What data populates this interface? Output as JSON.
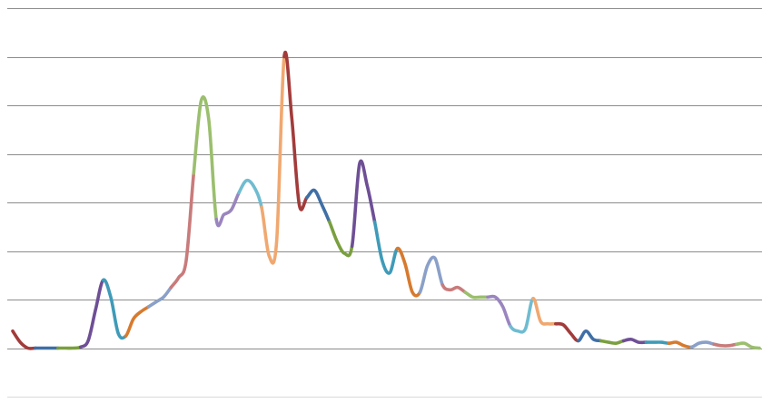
{
  "chart_data": {
    "type": "line",
    "title": "",
    "xlabel": "",
    "ylabel": "",
    "ylim": [
      -1,
      7
    ],
    "grid": true,
    "legend": "none",
    "series": [
      {
        "values": [
          0.35,
          0.12,
          0.0,
          0.0,
          0.0,
          0.0,
          0.0,
          0.0,
          0.0,
          0.02,
          0.15,
          0.8,
          1.4,
          1.05,
          0.3,
          0.25,
          0.6,
          0.75,
          0.85,
          0.95,
          1.05,
          1.25,
          1.45,
          1.8,
          3.6,
          5.1,
          4.7,
          2.65,
          2.75,
          2.85,
          3.2,
          3.45,
          3.32,
          2.9,
          1.9,
          2.2,
          6.0,
          4.75,
          2.95,
          3.1,
          3.25,
          2.95,
          2.6,
          2.2,
          1.95,
          2.1,
          3.8,
          3.35,
          2.6,
          1.8,
          1.55,
          2.05,
          1.75,
          1.15,
          1.15,
          1.7,
          1.85,
          1.3,
          1.2,
          1.25,
          1.15,
          1.05,
          1.05,
          1.05,
          1.05,
          0.85,
          0.45,
          0.35,
          0.4,
          1.02,
          0.55,
          0.5,
          0.5,
          0.48,
          0.3,
          0.15,
          0.35,
          0.18,
          0.15,
          0.12,
          0.1,
          0.15,
          0.18,
          0.12,
          0.12,
          0.12,
          0.12,
          0.1,
          0.12,
          0.05,
          0.02,
          0.1,
          0.12,
          0.08,
          0.05,
          0.05,
          0.08,
          0.1,
          0.02,
          0.0
        ]
      }
    ],
    "colors": [
      "#a33b3b",
      "#3f6fa6",
      "#7a9f3f",
      "#6e4f96",
      "#3f9bb8",
      "#d77a2e",
      "#8aa0c8",
      "#c97b7b",
      "#9bbf6e",
      "#9a85bf",
      "#6fbcd1",
      "#f0a870"
    ]
  }
}
